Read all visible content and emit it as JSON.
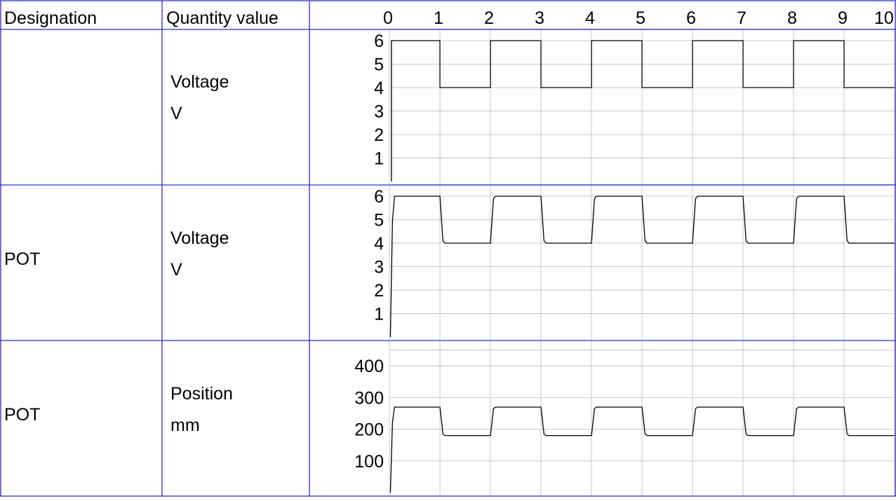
{
  "header": {
    "designation": "Designation",
    "quantity_value": "Quantity value",
    "time_ticks": [
      "0",
      "1",
      "2",
      "3",
      "4",
      "5",
      "6",
      "7",
      "8",
      "9",
      "10"
    ]
  },
  "colors": {
    "table_border": "#2a2ad4",
    "grid": "#c8c8c8",
    "trace": "#000000"
  },
  "rows": [
    {
      "designation": "",
      "quantity": "Voltage",
      "unit": "V"
    },
    {
      "designation": "POT",
      "quantity": "Voltage",
      "unit": "V"
    },
    {
      "designation": "POT",
      "quantity": "Position",
      "unit": "mm"
    }
  ],
  "chart_data": [
    {
      "type": "line",
      "x_range": [
        0,
        10
      ],
      "ylim": [
        0,
        6.6
      ],
      "y_ticks": [
        "1",
        "2",
        "3",
        "4",
        "5",
        "6"
      ],
      "series": [
        {
          "x": [
            0.04,
            0.04,
            1,
            1,
            2,
            2,
            3,
            3,
            4,
            4,
            5,
            5,
            6,
            6,
            7,
            7,
            8,
            8,
            9,
            9,
            10
          ],
          "y": [
            0,
            6,
            6,
            4,
            4,
            6,
            6,
            4,
            4,
            6,
            6,
            4,
            4,
            6,
            6,
            4,
            4,
            6,
            6,
            4,
            4
          ]
        }
      ]
    },
    {
      "type": "line",
      "x_range": [
        0,
        10
      ],
      "ylim": [
        0,
        6.6
      ],
      "y_ticks": [
        "1",
        "2",
        "3",
        "4",
        "5",
        "6"
      ],
      "series": [
        {
          "x": [
            0.02,
            0.06,
            0.1,
            1.0,
            1.06,
            1.1,
            2.0,
            2.06,
            2.1,
            3.0,
            3.06,
            3.1,
            4.0,
            4.06,
            4.1,
            5.0,
            5.06,
            5.1,
            6.0,
            6.06,
            6.1,
            7.0,
            7.06,
            7.1,
            8.0,
            8.06,
            8.1,
            9.0,
            9.06,
            9.1,
            10
          ],
          "y": [
            0,
            4.9,
            6,
            6,
            4.1,
            4,
            4,
            5.9,
            6,
            6,
            4.1,
            4,
            4,
            5.9,
            6,
            6,
            4.1,
            4,
            4,
            5.9,
            6,
            6,
            4.1,
            4,
            4,
            5.9,
            6,
            6,
            4.1,
            4,
            4
          ]
        }
      ]
    },
    {
      "type": "line",
      "x_range": [
        0,
        10
      ],
      "ylim": [
        0,
        450
      ],
      "y_ticks": [
        "100",
        "200",
        "300",
        "400"
      ],
      "series": [
        {
          "x": [
            0.02,
            0.06,
            0.1,
            1.0,
            1.06,
            1.1,
            2.0,
            2.06,
            2.1,
            3.0,
            3.06,
            3.1,
            4.0,
            4.06,
            4.1,
            5.0,
            5.06,
            5.1,
            6.0,
            6.06,
            6.1,
            7.0,
            7.06,
            7.1,
            8.0,
            8.06,
            8.1,
            9.0,
            9.06,
            9.1,
            10
          ],
          "y": [
            0,
            220,
            270,
            270,
            185,
            180,
            180,
            265,
            270,
            270,
            185,
            180,
            180,
            265,
            270,
            270,
            185,
            180,
            180,
            265,
            270,
            270,
            185,
            180,
            180,
            265,
            270,
            270,
            185,
            180,
            180
          ]
        }
      ]
    }
  ]
}
